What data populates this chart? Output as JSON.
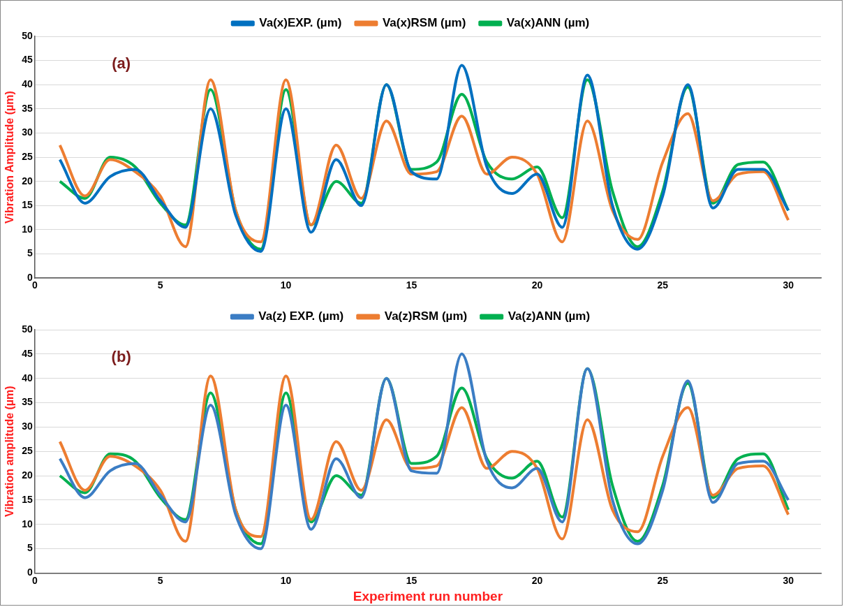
{
  "chart_data": [
    {
      "type": "line",
      "ylabel": "Vibration Amplitude (µm)",
      "annotations": [
        "(a)"
      ],
      "legend": "top",
      "grid": "y",
      "marker": "none",
      "xlim": [
        0,
        31.3
      ],
      "xticks": [
        0,
        5,
        10,
        15,
        20,
        25,
        30
      ],
      "ylim": [
        0,
        50
      ],
      "yticks": [
        0,
        5,
        10,
        15,
        20,
        25,
        30,
        35,
        40,
        45,
        50
      ],
      "x": [
        1,
        2,
        3,
        4,
        5,
        6,
        7,
        8,
        9,
        10,
        11,
        12,
        13,
        14,
        15,
        16,
        17,
        18,
        19,
        20,
        21,
        22,
        23,
        24,
        25,
        26,
        27,
        28,
        29,
        30
      ],
      "series": [
        {
          "name": "Va(x)EXP. (µm)",
          "color": "#0070c0",
          "values": [
            24.5,
            15.5,
            21,
            22.5,
            16,
            10.5,
            35,
            13,
            5.5,
            35,
            9.5,
            24.5,
            15,
            40,
            22,
            20.5,
            44,
            23,
            17.5,
            21.5,
            10.5,
            42,
            15,
            6,
            17,
            40,
            14.5,
            22.5,
            22.5,
            14
          ]
        },
        {
          "name": "Va(x)RSM (µm)",
          "color": "#ed7d31",
          "values": [
            27.5,
            17,
            24.5,
            22,
            17,
            6.5,
            41,
            14,
            7.5,
            41,
            11,
            27.5,
            16.5,
            32.5,
            21.5,
            22,
            33.5,
            21.5,
            25,
            21.5,
            7.5,
            32.5,
            14,
            8,
            24,
            34,
            16,
            21.5,
            22,
            12
          ]
        },
        {
          "name": "Va(x)ANN (µm)",
          "color": "#00b050",
          "values": [
            20,
            16.5,
            25,
            23,
            15.5,
            11,
            39,
            14,
            6,
            39,
            11,
            20,
            15.5,
            40,
            22.5,
            24,
            38,
            24,
            20.5,
            23,
            12.5,
            41,
            18,
            6.5,
            18,
            39.5,
            15.5,
            23.5,
            24,
            14
          ]
        }
      ]
    },
    {
      "type": "line",
      "xlabel": "Experiment run number",
      "ylabel": "Vibration amplitude (µm)",
      "annotations": [
        "(b)"
      ],
      "legend": "top",
      "grid": "y",
      "marker": "none",
      "xlim": [
        0,
        31.3
      ],
      "xticks": [
        0,
        5,
        10,
        15,
        20,
        25,
        30
      ],
      "ylim": [
        0,
        50
      ],
      "yticks": [
        0,
        5,
        10,
        15,
        20,
        25,
        30,
        35,
        40,
        45,
        50
      ],
      "x": [
        1,
        2,
        3,
        4,
        5,
        6,
        7,
        8,
        9,
        10,
        11,
        12,
        13,
        14,
        15,
        16,
        17,
        18,
        19,
        20,
        21,
        22,
        23,
        24,
        25,
        26,
        27,
        28,
        29,
        30
      ],
      "series": [
        {
          "name": "Va(z) EXP. (µm)",
          "color": "#3b7dc4",
          "values": [
            23.5,
            15.5,
            21,
            22.5,
            16,
            10.5,
            34.5,
            12,
            5,
            34.5,
            9,
            23.5,
            15.5,
            40,
            21,
            20.5,
            45,
            23,
            17.5,
            21.5,
            10.5,
            42,
            15,
            6,
            17,
            39.5,
            14.5,
            22.5,
            23,
            15
          ]
        },
        {
          "name": "Va(z)RSM (µm)",
          "color": "#ed7d31",
          "values": [
            27,
            17,
            24,
            22,
            17,
            6.5,
            40.5,
            13,
            7.5,
            40.5,
            11,
            27,
            17,
            31.5,
            21.5,
            22,
            34,
            21.5,
            25,
            21.5,
            7,
            31.5,
            13,
            8.5,
            24,
            34,
            16,
            21.5,
            22,
            12
          ]
        },
        {
          "name": "Va(z)ANN (µm)",
          "color": "#00b050",
          "values": [
            20,
            16.5,
            24.5,
            23,
            15.5,
            11,
            37,
            13,
            6,
            37,
            10.5,
            20,
            16,
            40,
            22.5,
            24,
            38,
            23.5,
            19.5,
            23,
            11.5,
            42,
            18,
            6.5,
            18,
            39,
            15.5,
            23.5,
            24.5,
            13
          ]
        }
      ]
    }
  ]
}
